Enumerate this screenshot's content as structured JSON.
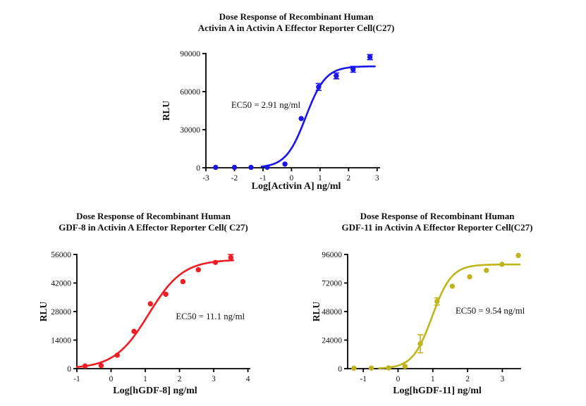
{
  "figure": {
    "background": "#ffffff"
  },
  "chart_data": [
    {
      "id": "activin-a",
      "type": "scatter",
      "title_line1": "Dose Response of Recombinant Human",
      "title_line2": "Activin A in Activin A Effector Reporter Cell(C27)",
      "xlabel": "Log[Activin A] ng/ml",
      "ylabel": "RLU",
      "color": "#1a15e8",
      "ec50_text": "EC50 = 2.91 ng/ml",
      "ec50_pos": {
        "x": -0.9,
        "y": 49500
      },
      "xlim": [
        -3,
        3.08
      ],
      "ylim": [
        0,
        90000
      ],
      "xticks": [
        -3,
        -2,
        -1,
        0,
        1,
        2,
        3
      ],
      "yticks": [
        0,
        30000,
        60000,
        90000
      ],
      "grid": false,
      "points": [
        {
          "x": -2.66,
          "y": 300
        },
        {
          "x": -2.0,
          "y": 300
        },
        {
          "x": -1.42,
          "y": 300
        },
        {
          "x": -0.85,
          "y": 400
        },
        {
          "x": -0.23,
          "y": 2900
        },
        {
          "x": 0.34,
          "y": 38800
        },
        {
          "x": 0.95,
          "y": 63700,
          "err": 2700
        },
        {
          "x": 1.57,
          "y": 72400,
          "err": 2300
        },
        {
          "x": 2.16,
          "y": 77600,
          "err": 2300
        },
        {
          "x": 2.75,
          "y": 87200,
          "err": 2000
        }
      ],
      "fit": {
        "bottom": 0,
        "top": 80000,
        "logec50": 0.5,
        "hill": 1.25,
        "xstart": -1.05,
        "xend": 2.92
      }
    },
    {
      "id": "gdf-8",
      "type": "scatter",
      "title_line1": "Dose Response of Recombinant Human",
      "title_line2": "GDF-8 in Activin A Effector Reporter Cell( C27)",
      "xlabel": "Log[hGDF-8] ng/ml",
      "ylabel": "RLU",
      "color": "#ee1c23",
      "ec50_text": "EC50 = 11.1 ng/ml",
      "ec50_pos": {
        "x": 2.9,
        "y": 25500
      },
      "xlim": [
        -1,
        4.05
      ],
      "ylim": [
        0,
        56000
      ],
      "xticks": [
        -1,
        0,
        1,
        2,
        3,
        4
      ],
      "yticks": [
        0,
        14000,
        28000,
        42000,
        56000
      ],
      "grid": false,
      "points": [
        {
          "x": -0.76,
          "y": 1300
        },
        {
          "x": -0.29,
          "y": 1500
        },
        {
          "x": 0.18,
          "y": 6600
        },
        {
          "x": 0.67,
          "y": 18300
        },
        {
          "x": 1.15,
          "y": 31800
        },
        {
          "x": 1.6,
          "y": 36500
        },
        {
          "x": 2.1,
          "y": 42700
        },
        {
          "x": 2.55,
          "y": 48500
        },
        {
          "x": 3.05,
          "y": 52100
        },
        {
          "x": 3.5,
          "y": 54500,
          "err": 1500
        }
      ],
      "fit": {
        "bottom": 0,
        "top": 53500,
        "logec50": 1.1,
        "hill": 0.87,
        "xstart": -1.0,
        "xend": 3.57
      }
    },
    {
      "id": "gdf-11",
      "type": "scatter",
      "title_line1": "Dose Response of Recombinant Human",
      "title_line2": "GDF-11 in Activin A Effector Reporter Cell(C27)",
      "xlabel": "Log[hGDF-11] ng/ml",
      "ylabel": "RLU",
      "color": "#bfb41c",
      "ec50_text": "EC50 = 9.54 ng/ml",
      "ec50_pos": {
        "x": 2.65,
        "y": 48500
      },
      "xlim": [
        -1.45,
        3.52
      ],
      "ylim": [
        0,
        96000
      ],
      "xticks": [
        -1,
        0,
        1,
        2,
        3
      ],
      "yticks": [
        0,
        24000,
        48000,
        72000,
        96000
      ],
      "grid": false,
      "points": [
        {
          "x": -1.27,
          "y": 400
        },
        {
          "x": -0.77,
          "y": 500
        },
        {
          "x": -0.27,
          "y": 600
        },
        {
          "x": 0.2,
          "y": 1900
        },
        {
          "x": 0.64,
          "y": 20900,
          "err": 7600
        },
        {
          "x": 1.12,
          "y": 56500,
          "err": 3000
        },
        {
          "x": 1.56,
          "y": 69300
        },
        {
          "x": 2.06,
          "y": 77200
        },
        {
          "x": 2.54,
          "y": 82600
        },
        {
          "x": 2.99,
          "y": 87700
        },
        {
          "x": 3.46,
          "y": 95200
        }
      ],
      "fit": {
        "bottom": 0,
        "top": 87600,
        "logec50": 0.98,
        "hill": 1.55,
        "xstart": -0.55,
        "xend": 3.5
      }
    }
  ]
}
